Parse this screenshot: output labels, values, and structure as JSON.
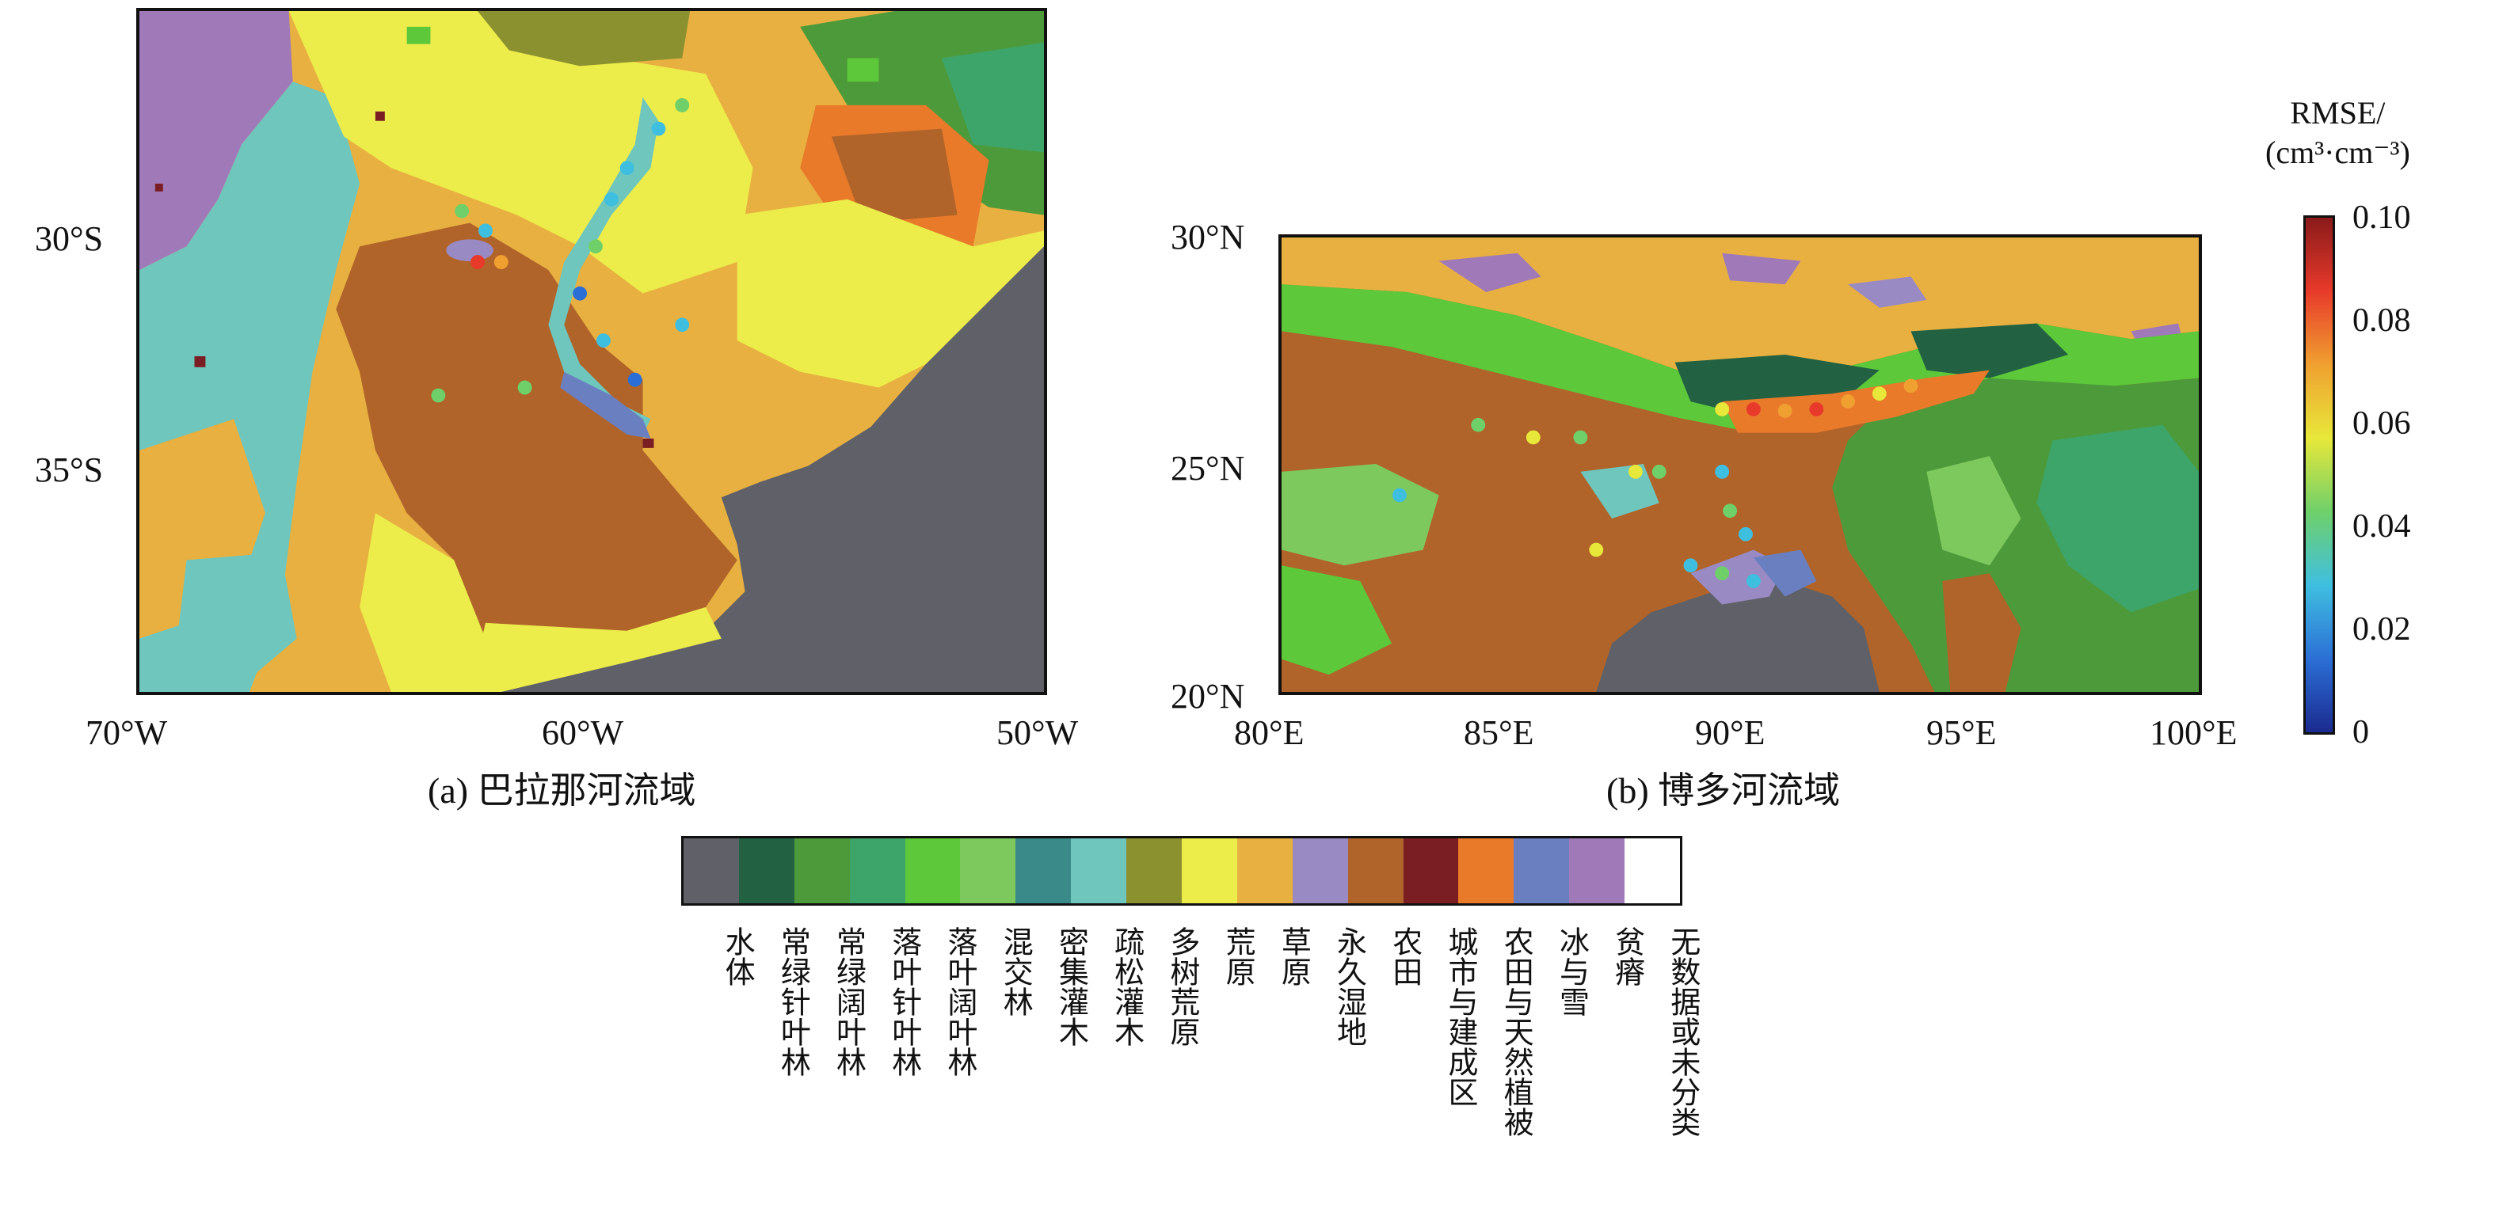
{
  "panels": [
    {
      "id": "a",
      "caption": "(a) 巴拉那河流域",
      "x_ticks": [
        "70°W",
        "60°W",
        "50°W"
      ],
      "y_ticks": [
        "30°S",
        "35°S"
      ]
    },
    {
      "id": "b",
      "caption": "(b) 博多河流域",
      "x_ticks": [
        "80°E",
        "85°E",
        "90°E",
        "95°E",
        "100°E"
      ],
      "y_ticks": [
        "30°N",
        "25°N",
        "20°N"
      ]
    }
  ],
  "colorbar": {
    "title_line1": "RMSE/",
    "title_line2": "(cm³·cm⁻³)",
    "ticks": [
      "0.10",
      "0.08",
      "0.06",
      "0.04",
      "0.02",
      "0"
    ],
    "range": [
      0,
      0.1
    ],
    "colors": [
      "#1b2a8f",
      "#2b6fd6",
      "#3fbfe0",
      "#6fd06a",
      "#e8e83a",
      "#f0a030",
      "#e83a2a",
      "#8a1a1a"
    ]
  },
  "land_cover_legend": [
    {
      "label": "水体",
      "color": "#5f6068"
    },
    {
      "label": "常绿针叶林",
      "color": "#226142"
    },
    {
      "label": "常绿阔叶林",
      "color": "#4d9a3a"
    },
    {
      "label": "落叶针叶林",
      "color": "#3da56a"
    },
    {
      "label": "落叶阔叶林",
      "color": "#5cc83a"
    },
    {
      "label": "混交林",
      "color": "#7ec95e"
    },
    {
      "label": "密集灌木",
      "color": "#3b8a8a"
    },
    {
      "label": "疏松灌木",
      "color": "#6fc6bd"
    },
    {
      "label": "多树荒原",
      "color": "#8c9130"
    },
    {
      "label": "荒原",
      "color": "#ecec4a"
    },
    {
      "label": "草原",
      "color": "#e8b040"
    },
    {
      "label": "永久湿地",
      "color": "#9a8ac4"
    },
    {
      "label": "农田",
      "color": "#b0642a"
    },
    {
      "label": "城市与建成区",
      "color": "#7a1e24"
    },
    {
      "label": "农田与天然植被",
      "color": "#e87a2a"
    },
    {
      "label": "冰与雪",
      "color": "#6a7fc0"
    },
    {
      "label": "贫瘠",
      "color": "#a07ab8"
    },
    {
      "label": "无数据或未分类",
      "color": "#ffffff"
    }
  ]
}
